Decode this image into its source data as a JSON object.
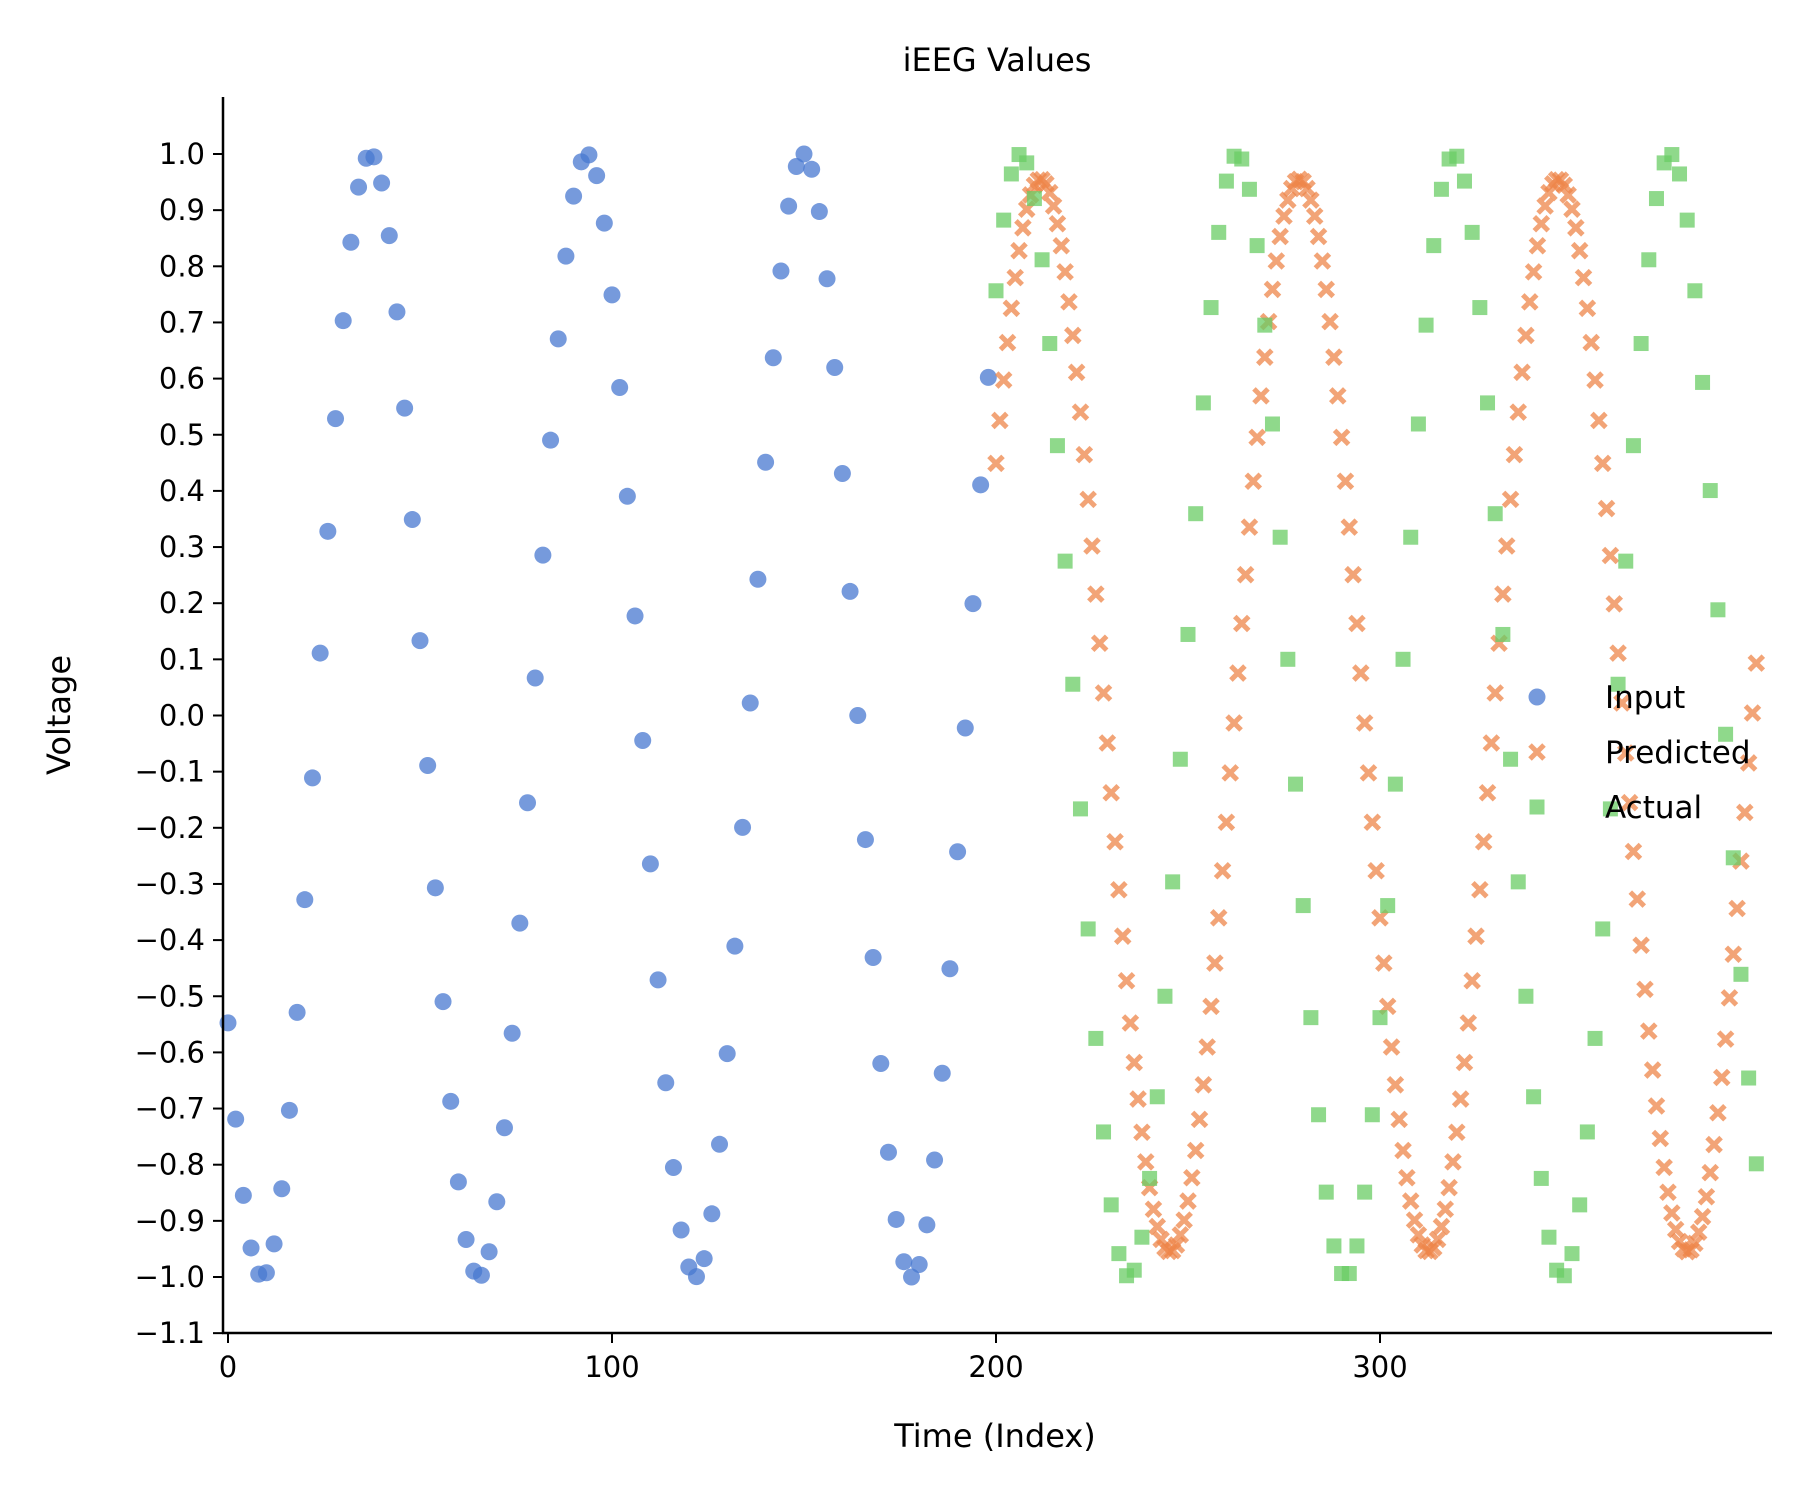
{
  "chart_data": {
    "type": "scatter",
    "title": "iEEG Values",
    "xlabel": "Time (Index)",
    "ylabel": "Voltage",
    "xlim": [
      -1,
      400
    ],
    "ylim": [
      -1.1,
      1.1
    ],
    "xticks": [
      0,
      100,
      200,
      300
    ],
    "xtick_labels": [
      "0",
      "100",
      "200",
      "300"
    ],
    "yticks": [
      -1.1,
      -1.0,
      -0.9,
      -0.8,
      -0.7,
      -0.6,
      -0.5,
      -0.4,
      -0.3,
      -0.2,
      -0.1,
      0.0,
      0.1,
      0.2,
      0.3,
      0.4,
      0.5,
      0.6,
      0.7,
      0.8,
      0.9,
      1.0
    ],
    "ytick_labels": [
      "−1.1",
      "−1.0",
      "−0.9",
      "−0.8",
      "−0.7",
      "−0.6",
      "−0.5",
      "−0.4",
      "−0.3",
      "−0.2",
      "−0.1",
      "0.0",
      "0.1",
      "0.2",
      "0.3",
      "0.4",
      "0.5",
      "0.6",
      "0.7",
      "0.8",
      "0.9",
      "1.0"
    ],
    "grid": false,
    "legend_position": "right",
    "series": [
      {
        "name": "Input",
        "marker": "circle",
        "color": "#4878d0",
        "x_range": [
          0,
          198,
          2
        ],
        "model": {
          "amplitude": 1.0,
          "period": 56.4,
          "peak_at": 37.1
        }
      },
      {
        "name": "Predicted",
        "marker": "x",
        "color": "#ee854a",
        "x_range": [
          200,
          398,
          1
        ],
        "model": {
          "amplitude": 0.955,
          "period": 67.4,
          "peak_at": 211.6
        }
      },
      {
        "name": "Actual",
        "marker": "square",
        "color": "#6acc64",
        "x_range": [
          200,
          398,
          2
        ],
        "model": {
          "amplitude": 1.0,
          "period": 56.4,
          "peak_at": 206.4
        }
      }
    ]
  }
}
